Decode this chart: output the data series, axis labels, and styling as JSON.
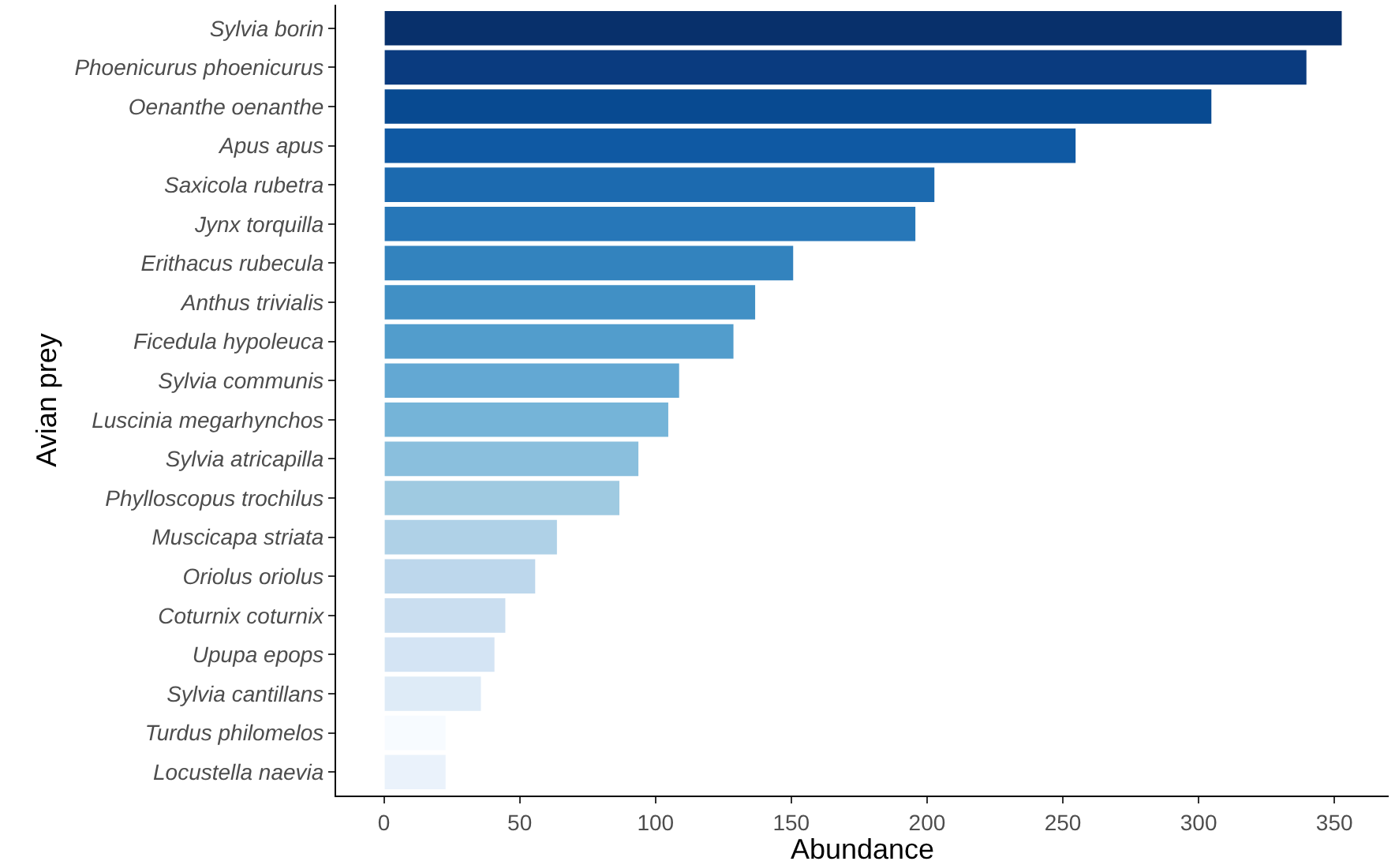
{
  "chart_data": {
    "type": "bar",
    "orientation": "horizontal",
    "xlabel": "Abundance",
    "ylabel": "Avian prey",
    "categories": [
      "Sylvia borin",
      "Phoenicurus phoenicurus",
      "Oenanthe oenanthe",
      "Apus apus",
      "Saxicola rubetra",
      "Jynx torquilla",
      "Erithacus rubecula",
      "Anthus trivialis",
      "Ficedula hypoleuca",
      "Sylvia communis",
      "Luscinia megarhynchos",
      "Sylvia atricapilla",
      "Phylloscopus trochilus",
      "Muscicapa striata",
      "Oriolus oriolus",
      "Coturnix coturnix",
      "Upupa epops",
      "Sylvia cantillans",
      "Turdus philomelos",
      "Locustella naevia"
    ],
    "values": [
      353,
      340,
      305,
      255,
      203,
      196,
      151,
      137,
      129,
      109,
      105,
      94,
      87,
      64,
      56,
      45,
      41,
      36,
      23,
      23
    ],
    "colors": [
      "#08306b",
      "#0a3b7f",
      "#084a91",
      "#0f59a3",
      "#1c6aaf",
      "#2777b8",
      "#3383be",
      "#4190c5",
      "#529dcc",
      "#63a8d3",
      "#75b4d8",
      "#8abfdd",
      "#9fcae1",
      "#afd1e7",
      "#bdd7ec",
      "#cadef0",
      "#d4e4f4",
      "#deebf7",
      "#f7fbff",
      "#eaf2fb"
    ],
    "xlim": [
      -17.6,
      370
    ],
    "xticks": [
      0,
      50,
      100,
      150,
      200,
      250,
      300,
      350
    ]
  }
}
